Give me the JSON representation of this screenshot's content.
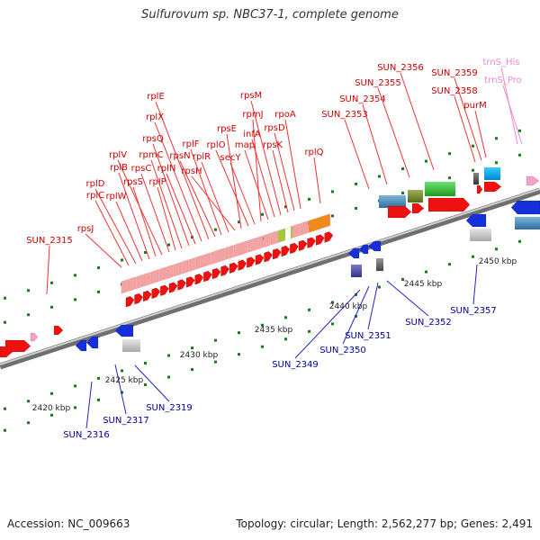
{
  "title": "Sulfurovum sp. NBC37-1, complete genome",
  "footer": {
    "accession": "Accession: NC_009663",
    "stats": "Topology: circular; Length: 2,562,277 bp; Genes: 2,491"
  },
  "colors": {
    "backbone": "#888888",
    "red_label": "#cc0000",
    "blue_label": "#000099",
    "pink_label": "#ee88cc",
    "tick": "#1a7a1a"
  },
  "kbp_labels": [
    "2420 kbp",
    "2425 kbp",
    "2430 kbp",
    "2435 kbp",
    "2440 kbp",
    "2445 kbp",
    "2450 kbp"
  ],
  "labels_red": [
    "SUN_2315",
    "rpsJ",
    "rplC",
    "rplD",
    "rplW",
    "rplB",
    "rpsS",
    "rplV",
    "rpsC",
    "rplP",
    "rpmC",
    "rpsQ",
    "rplN",
    "rplX",
    "rplE",
    "rpsN",
    "rplF",
    "rplR",
    "rpsH",
    "rpsE",
    "rplO",
    "secY",
    "rpmJ",
    "map",
    "infA",
    "rpsM",
    "rpsK",
    "rpsD",
    "rpoA",
    "rplQ",
    "SUN_2353",
    "SUN_2354",
    "SUN_2355",
    "SUN_2356",
    "SUN_2358",
    "SUN_2359",
    "purM"
  ],
  "labels_blue": [
    "SUN_2316",
    "SUN_2317",
    "SUN_2319",
    "SUN_2349",
    "SUN_2350",
    "SUN_2351",
    "SUN_2352",
    "SUN_2357"
  ],
  "labels_pink": [
    "trnS_His",
    "trnS_Pro"
  ]
}
